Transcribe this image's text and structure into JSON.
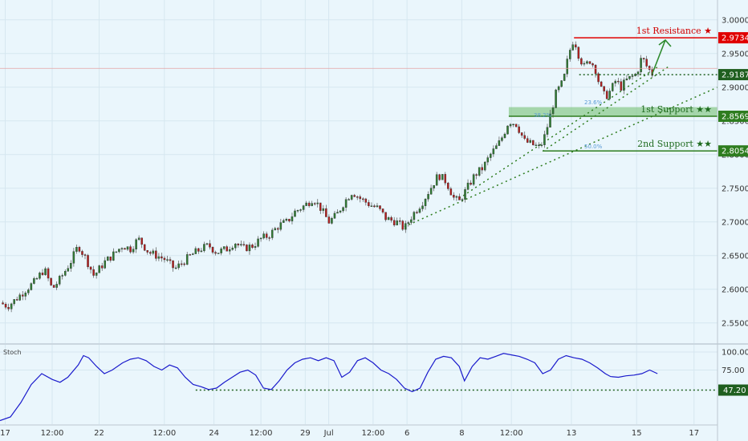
{
  "chart_data": [
    {
      "type": "candlestick",
      "x_ticks": [
        "17",
        "12:00",
        "22",
        "12:00",
        "24",
        "12:00",
        "29",
        "Jul",
        "12:00",
        "6",
        "8",
        "12:00",
        "13",
        "15",
        "17"
      ],
      "y_ticks": [
        "3.00000",
        "2.95000",
        "2.90000",
        "2.85000",
        "2.80000",
        "2.75000",
        "2.70000",
        "2.65000",
        "2.60000",
        "2.55000"
      ],
      "ylim": [
        2.52,
        3.02
      ],
      "last_price": "2.91873",
      "levels": [
        {
          "label": "1st Resistance ★",
          "price": "2.97345",
          "value": 2.97345,
          "color": "#e00000"
        },
        {
          "label": "1st Support ★★",
          "price": "2.85691",
          "value": 2.85691,
          "color": "#2e7d1f"
        },
        {
          "label": "2nd Support ★★",
          "price": "2.80545",
          "value": 2.80545,
          "color": "#2e7d1f"
        }
      ],
      "support_zone": [
        2.85691,
        2.8705
      ],
      "fib_labels": [
        "23.6%",
        "38.2%",
        "50.0%"
      ],
      "close_path": [
        [
          0,
          2.58
        ],
        [
          0.3,
          2.575
        ],
        [
          0.6,
          2.585
        ],
        [
          1,
          2.6
        ],
        [
          1.3,
          2.61
        ],
        [
          1.7,
          2.63
        ],
        [
          2,
          2.6
        ],
        [
          2.3,
          2.615
        ],
        [
          2.7,
          2.64
        ],
        [
          3.0,
          2.665
        ],
        [
          3.3,
          2.645
        ],
        [
          3.6,
          2.62
        ],
        [
          4.0,
          2.64
        ],
        [
          4.3,
          2.65
        ],
        [
          4.7,
          2.665
        ],
        [
          5,
          2.66
        ],
        [
          5.3,
          2.675
        ],
        [
          5.7,
          2.655
        ],
        [
          6.0,
          2.65
        ],
        [
          6.3,
          2.645
        ],
        [
          6.7,
          2.63
        ],
        [
          7,
          2.64
        ],
        [
          7.3,
          2.65
        ],
        [
          7.7,
          2.66
        ],
        [
          8,
          2.665
        ],
        [
          8.3,
          2.655
        ],
        [
          8.7,
          2.66
        ],
        [
          9,
          2.67
        ],
        [
          9.3,
          2.66
        ],
        [
          9.7,
          2.665
        ],
        [
          10,
          2.675
        ],
        [
          10.3,
          2.68
        ],
        [
          10.7,
          2.695
        ],
        [
          11,
          2.7
        ],
        [
          11.3,
          2.715
        ],
        [
          11.7,
          2.725
        ],
        [
          12,
          2.735
        ],
        [
          12.3,
          2.72
        ],
        [
          12.6,
          2.7
        ],
        [
          12.9,
          2.71
        ],
        [
          13.2,
          2.73
        ],
        [
          13.5,
          2.745
        ],
        [
          13.8,
          2.735
        ],
        [
          14.2,
          2.725
        ],
        [
          14.5,
          2.72
        ],
        [
          14.8,
          2.705
        ],
        [
          15.2,
          2.7
        ],
        [
          15.5,
          2.69
        ],
        [
          15.8,
          2.71
        ],
        [
          16.2,
          2.73
        ],
        [
          16.5,
          2.75
        ],
        [
          16.8,
          2.77
        ],
        [
          17.1,
          2.76
        ],
        [
          17.4,
          2.735
        ],
        [
          17.6,
          2.73
        ],
        [
          17.9,
          2.75
        ],
        [
          18.2,
          2.77
        ],
        [
          18.5,
          2.78
        ],
        [
          18.8,
          2.8
        ],
        [
          19.1,
          2.815
        ],
        [
          19.3,
          2.83
        ],
        [
          19.5,
          2.85
        ],
        [
          19.8,
          2.845
        ],
        [
          20.1,
          2.82
        ],
        [
          20.4,
          2.815
        ],
        [
          20.7,
          2.81
        ],
        [
          20.9,
          2.83
        ],
        [
          21.1,
          2.86
        ],
        [
          21.3,
          2.89
        ],
        [
          21.6,
          2.91
        ],
        [
          21.8,
          2.95
        ],
        [
          22.0,
          2.973
        ],
        [
          22.2,
          2.945
        ],
        [
          22.4,
          2.93
        ],
        [
          22.6,
          2.94
        ],
        [
          22.8,
          2.93
        ],
        [
          23.0,
          2.9
        ],
        [
          23.2,
          2.885
        ],
        [
          23.4,
          2.895
        ],
        [
          23.6,
          2.91
        ],
        [
          23.8,
          2.9
        ],
        [
          24.0,
          2.91
        ],
        [
          24.2,
          2.915
        ],
        [
          24.4,
          2.92
        ],
        [
          24.6,
          2.945
        ],
        [
          24.8,
          2.93
        ],
        [
          25.0,
          2.92
        ]
      ],
      "projection": [
        [
          25.0,
          2.92
        ],
        [
          25.5,
          2.97
        ]
      ],
      "trendlines": [
        [
          [
            15.5,
            2.693
          ],
          [
            27.5,
            2.9
          ]
        ],
        [
          [
            20.8,
            2.805
          ],
          [
            25.6,
            2.93
          ]
        ],
        [
          [
            17.6,
            2.735
          ],
          [
            25.2,
            2.93
          ]
        ]
      ],
      "resistance_span": [
        22.0,
        27.5
      ],
      "support1_span": [
        19.5,
        27.5
      ],
      "support2_span": [
        20.8,
        27.5
      ],
      "pivot_span": [
        22.2,
        27.5
      ],
      "x_domain": [
        0,
        27.5
      ],
      "x_tick_positions": [
        0.2,
        2.0,
        3.8,
        6.3,
        8.2,
        10.0,
        11.7,
        12.6,
        14.3,
        15.6,
        17.7,
        19.6,
        21.9,
        24.4,
        26.6
      ]
    },
    {
      "type": "line",
      "title": "Stoch",
      "y_ticks": [
        "100.00",
        "75.00"
      ],
      "ylim": [
        0,
        110
      ],
      "level_label": "47.20",
      "level": 47.2,
      "level_span": [
        7.5,
        27.5
      ],
      "series": [
        {
          "values": [
            [
              0,
              5
            ],
            [
              0.4,
              10
            ],
            [
              0.8,
              30
            ],
            [
              1.2,
              55
            ],
            [
              1.6,
              70
            ],
            [
              2.0,
              62
            ],
            [
              2.3,
              58
            ],
            [
              2.6,
              65
            ],
            [
              3.0,
              82
            ],
            [
              3.2,
              95
            ],
            [
              3.4,
              92
            ],
            [
              3.7,
              80
            ],
            [
              4.0,
              70
            ],
            [
              4.3,
              75
            ],
            [
              4.7,
              85
            ],
            [
              5,
              90
            ],
            [
              5.3,
              92
            ],
            [
              5.6,
              88
            ],
            [
              5.9,
              80
            ],
            [
              6.2,
              75
            ],
            [
              6.5,
              82
            ],
            [
              6.8,
              78
            ],
            [
              7.1,
              65
            ],
            [
              7.4,
              55
            ],
            [
              7.7,
              52
            ],
            [
              8.0,
              48
            ],
            [
              8.3,
              50
            ],
            [
              8.6,
              58
            ],
            [
              8.9,
              65
            ],
            [
              9.2,
              72
            ],
            [
              9.5,
              75
            ],
            [
              9.8,
              68
            ],
            [
              10.1,
              50
            ],
            [
              10.4,
              48
            ],
            [
              10.7,
              60
            ],
            [
              11.0,
              75
            ],
            [
              11.3,
              85
            ],
            [
              11.6,
              90
            ],
            [
              11.9,
              92
            ],
            [
              12.2,
              88
            ],
            [
              12.5,
              92
            ],
            [
              12.8,
              88
            ],
            [
              13.1,
              65
            ],
            [
              13.4,
              72
            ],
            [
              13.7,
              88
            ],
            [
              14.0,
              92
            ],
            [
              14.3,
              85
            ],
            [
              14.6,
              75
            ],
            [
              14.9,
              70
            ],
            [
              15.2,
              62
            ],
            [
              15.5,
              50
            ],
            [
              15.8,
              45
            ],
            [
              16.1,
              50
            ],
            [
              16.4,
              72
            ],
            [
              16.7,
              90
            ],
            [
              17.0,
              94
            ],
            [
              17.3,
              92
            ],
            [
              17.6,
              80
            ],
            [
              17.8,
              60
            ],
            [
              18.1,
              80
            ],
            [
              18.4,
              92
            ],
            [
              18.7,
              90
            ],
            [
              19.0,
              94
            ],
            [
              19.3,
              98
            ],
            [
              19.6,
              96
            ],
            [
              19.9,
              94
            ],
            [
              20.2,
              90
            ],
            [
              20.5,
              85
            ],
            [
              20.8,
              70
            ],
            [
              21.1,
              75
            ],
            [
              21.4,
              90
            ],
            [
              21.7,
              95
            ],
            [
              22.0,
              92
            ],
            [
              22.3,
              90
            ],
            [
              22.6,
              85
            ],
            [
              22.9,
              78
            ],
            [
              23.2,
              70
            ],
            [
              23.4,
              66
            ],
            [
              23.7,
              65
            ],
            [
              24.0,
              67
            ],
            [
              24.3,
              68
            ],
            [
              24.6,
              70
            ],
            [
              24.9,
              75
            ],
            [
              25.2,
              70
            ]
          ],
          "color": "#1a1acc"
        }
      ]
    }
  ]
}
